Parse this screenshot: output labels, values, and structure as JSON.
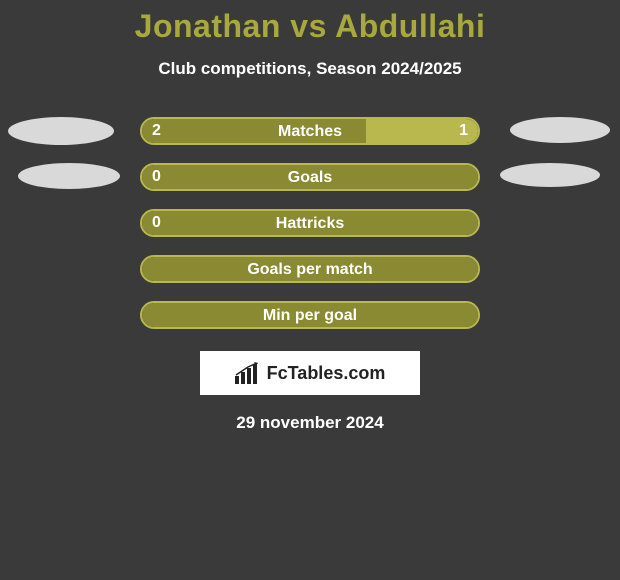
{
  "title": "Jonathan vs Abdullahi",
  "subtitle": "Club competitions, Season 2024/2025",
  "colors": {
    "title_color": "#a8a83e",
    "background": "#3a3a3a",
    "text": "#ffffff",
    "bar_dark": "#8a8a33",
    "bar_light": "#b8b84e",
    "border_full_dark": "#8a8a33",
    "ellipse": "#d9d9d9",
    "logo_bg": "#ffffff",
    "logo_text": "#222222"
  },
  "stats": [
    {
      "label": "Matches",
      "left_value": "2",
      "right_value": "1",
      "left_width_pct": 66.7,
      "right_width_pct": 33.3,
      "left_color": "#8a8a33",
      "right_color": "#b8b84e",
      "border_color": "#b8b84e",
      "show_left_ellipse": true,
      "show_right_ellipse": true,
      "ellipse_variant": 1
    },
    {
      "label": "Goals",
      "left_value": "0",
      "right_value": "",
      "left_width_pct": 100,
      "right_width_pct": 0,
      "left_color": "#8a8a33",
      "right_color": "#8a8a33",
      "border_color": "#b8b84e",
      "show_left_ellipse": true,
      "show_right_ellipse": true,
      "ellipse_variant": 2
    },
    {
      "label": "Hattricks",
      "left_value": "0",
      "right_value": "",
      "left_width_pct": 100,
      "right_width_pct": 0,
      "left_color": "#8a8a33",
      "right_color": "#8a8a33",
      "border_color": "#b8b84e",
      "show_left_ellipse": false,
      "show_right_ellipse": false,
      "ellipse_variant": 0
    },
    {
      "label": "Goals per match",
      "left_value": "",
      "right_value": "",
      "left_width_pct": 100,
      "right_width_pct": 0,
      "left_color": "#8a8a33",
      "right_color": "#8a8a33",
      "border_color": "#b8b84e",
      "show_left_ellipse": false,
      "show_right_ellipse": false,
      "ellipse_variant": 0
    },
    {
      "label": "Min per goal",
      "left_value": "",
      "right_value": "",
      "left_width_pct": 100,
      "right_width_pct": 0,
      "left_color": "#8a8a33",
      "right_color": "#8a8a33",
      "border_color": "#b8b84e",
      "show_left_ellipse": false,
      "show_right_ellipse": false,
      "ellipse_variant": 0
    }
  ],
  "logo": {
    "text": "FcTables.com"
  },
  "date": "29 november 2024",
  "typography": {
    "title_fontsize": 32,
    "subtitle_fontsize": 17,
    "bar_label_fontsize": 16,
    "value_fontsize": 16,
    "logo_fontsize": 18,
    "date_fontsize": 17
  }
}
